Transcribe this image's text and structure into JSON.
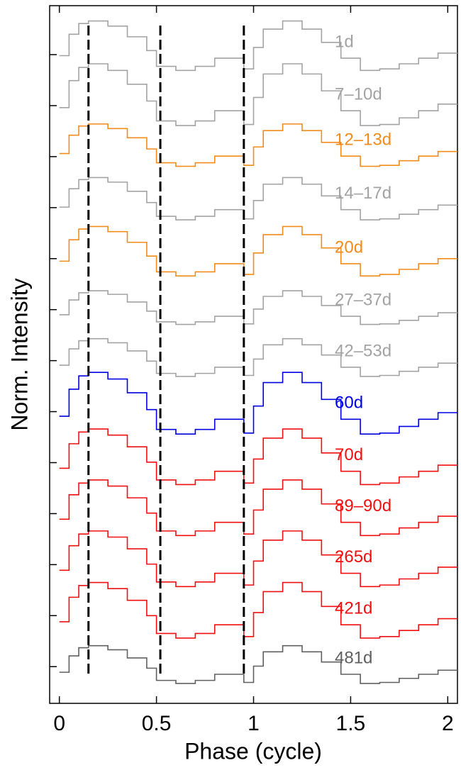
{
  "chart_data": {
    "type": "step",
    "xlabel": "Phase (cycle)",
    "ylabel": "Norm. Intensity",
    "xlim": [
      -0.05,
      2.05
    ],
    "ylim": [
      -0.72,
      12.96
    ],
    "xticks": [
      0,
      0.5,
      1,
      1.5,
      2
    ],
    "yticks": [
      0,
      1,
      2,
      3,
      4,
      5,
      6,
      7,
      8,
      9,
      10,
      11,
      12
    ],
    "ytick_labels_shown": false,
    "vlines": [
      0.15,
      0.52,
      0.95
    ],
    "x": [
      0,
      0.05,
      0.1,
      0.15,
      0.25,
      0.35,
      0.45,
      0.5,
      0.6,
      0.7,
      0.8,
      0.9,
      0.95,
      1.0,
      1.05,
      1.15,
      1.25,
      1.35,
      1.45,
      1.55,
      1.65,
      1.75,
      1.85,
      1.95
    ],
    "series": [
      {
        "name": "1d",
        "color": "#a3a3a3",
        "values": [
          11.98,
          12.4,
          12.61,
          12.66,
          12.56,
          12.35,
          12.08,
          11.77,
          11.69,
          11.77,
          11.93,
          11.93,
          11.72,
          12.14,
          12.5,
          12.66,
          12.5,
          12.24,
          11.93,
          11.69,
          11.72,
          11.82,
          11.93,
          12.03
        ]
      },
      {
        "name": "7–10d",
        "color": "#a3a3a3",
        "values": [
          10.96,
          11.49,
          11.75,
          11.82,
          11.69,
          11.42,
          11.09,
          10.7,
          10.61,
          10.7,
          10.9,
          10.9,
          10.63,
          11.16,
          11.62,
          11.82,
          11.62,
          11.29,
          10.9,
          10.61,
          10.63,
          10.76,
          10.9,
          11.03
        ]
      },
      {
        "name": "12–13d",
        "color": "#f28c1c",
        "values": [
          10.06,
          10.42,
          10.6,
          10.64,
          10.55,
          10.37,
          10.15,
          9.88,
          9.81,
          9.88,
          10.01,
          10.01,
          9.83,
          10.19,
          10.51,
          10.64,
          10.51,
          10.28,
          10.01,
          9.81,
          9.83,
          9.92,
          10.01,
          10.1
        ]
      },
      {
        "name": "14–17d",
        "color": "#a3a3a3",
        "values": [
          9.01,
          9.37,
          9.55,
          9.59,
          9.5,
          9.32,
          9.1,
          8.83,
          8.76,
          8.83,
          8.96,
          8.96,
          8.78,
          9.14,
          9.46,
          9.59,
          9.46,
          9.23,
          8.96,
          8.76,
          8.78,
          8.87,
          8.96,
          9.05
        ]
      },
      {
        "name": "20d",
        "color": "#f28c1c",
        "values": [
          7.95,
          8.37,
          8.58,
          8.63,
          8.53,
          8.32,
          8.05,
          7.74,
          7.66,
          7.74,
          7.9,
          7.9,
          7.69,
          8.11,
          8.47,
          8.63,
          8.47,
          8.21,
          7.9,
          7.66,
          7.69,
          7.79,
          7.9,
          8.0
        ]
      },
      {
        "name": "27–37d",
        "color": "#a3a3a3",
        "values": [
          6.9,
          7.19,
          7.33,
          7.37,
          7.3,
          7.15,
          6.97,
          6.76,
          6.71,
          6.76,
          6.87,
          6.87,
          6.72,
          7.01,
          7.26,
          7.37,
          7.26,
          7.08,
          6.87,
          6.71,
          6.72,
          6.79,
          6.87,
          6.94
        ]
      },
      {
        "name": "42–53d",
        "color": "#a3a3a3",
        "values": [
          5.91,
          6.23,
          6.39,
          6.43,
          6.35,
          6.19,
          5.99,
          5.75,
          5.69,
          5.75,
          5.87,
          5.87,
          5.71,
          6.03,
          6.31,
          6.43,
          6.31,
          6.11,
          5.87,
          5.69,
          5.71,
          5.79,
          5.87,
          5.95
        ]
      },
      {
        "name": "60d",
        "color": "#0000e0",
        "values": [
          4.91,
          5.44,
          5.7,
          5.77,
          5.64,
          5.37,
          5.04,
          4.65,
          4.56,
          4.65,
          4.85,
          4.85,
          4.58,
          5.11,
          5.57,
          5.77,
          5.57,
          5.24,
          4.85,
          4.56,
          4.58,
          4.71,
          4.85,
          4.98
        ]
      },
      {
        "name": "70d",
        "color": "#f01010",
        "values": [
          3.89,
          4.37,
          4.6,
          4.66,
          4.54,
          4.31,
          4.01,
          3.66,
          3.57,
          3.66,
          3.83,
          3.83,
          3.6,
          4.07,
          4.48,
          4.66,
          4.48,
          4.19,
          3.83,
          3.57,
          3.6,
          3.72,
          3.83,
          3.95
        ]
      },
      {
        "name": "89–90d",
        "color": "#f01010",
        "values": [
          2.89,
          3.37,
          3.6,
          3.66,
          3.54,
          3.31,
          3.01,
          2.66,
          2.57,
          2.66,
          2.83,
          2.83,
          2.6,
          3.07,
          3.48,
          3.66,
          3.48,
          3.19,
          2.83,
          2.57,
          2.6,
          2.72,
          2.83,
          2.95
        ]
      },
      {
        "name": "265d",
        "color": "#f01010",
        "values": [
          1.89,
          2.37,
          2.6,
          2.66,
          2.54,
          2.31,
          2.01,
          1.66,
          1.57,
          1.66,
          1.83,
          1.83,
          1.6,
          2.07,
          2.48,
          2.66,
          2.48,
          2.19,
          1.83,
          1.57,
          1.6,
          1.72,
          1.83,
          1.95
        ]
      },
      {
        "name": "421d",
        "color": "#f01010",
        "values": [
          0.88,
          1.36,
          1.59,
          1.65,
          1.53,
          1.3,
          1.0,
          0.65,
          0.56,
          0.65,
          0.82,
          0.82,
          0.59,
          1.06,
          1.47,
          1.65,
          1.47,
          1.18,
          0.82,
          0.56,
          0.59,
          0.71,
          0.82,
          0.94
        ]
      },
      {
        "name": "481d",
        "color": "#606060",
        "values": [
          -0.11,
          0.21,
          0.37,
          0.41,
          0.33,
          0.17,
          -0.03,
          -0.27,
          -0.33,
          -0.27,
          -0.15,
          -0.15,
          -0.31,
          0.01,
          0.29,
          0.41,
          0.29,
          0.09,
          -0.15,
          -0.33,
          -0.31,
          -0.23,
          -0.15,
          -0.07
        ]
      }
    ]
  }
}
